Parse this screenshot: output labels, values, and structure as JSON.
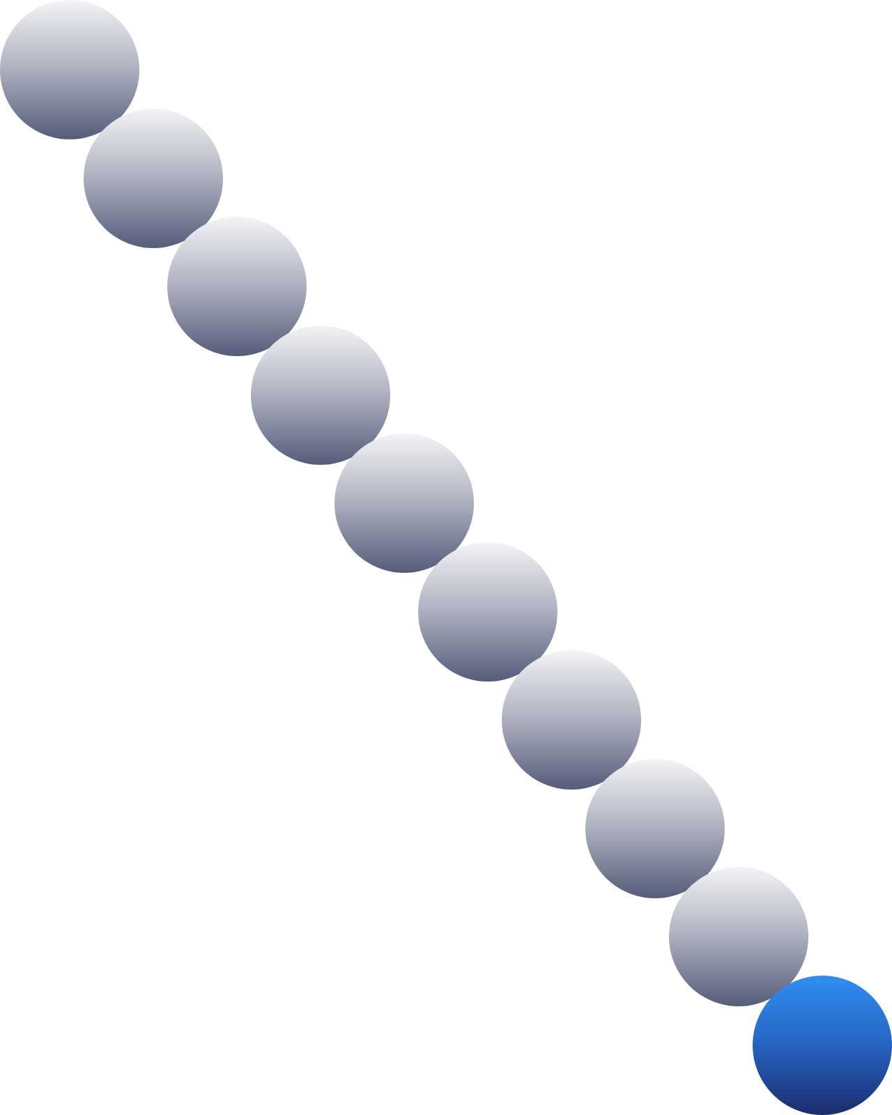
{
  "circles": [
    {
      "color": "gray"
    },
    {
      "color": "gray"
    },
    {
      "color": "gray"
    },
    {
      "color": "gray"
    },
    {
      "color": "gray"
    },
    {
      "color": "gray"
    },
    {
      "color": "gray"
    },
    {
      "color": "gray"
    },
    {
      "color": "gray"
    },
    {
      "color": "blue"
    }
  ],
  "colors": {
    "gray_top": "#f4f4f6",
    "gray_bottom": "#555c7a",
    "blue_top": "#2f8ff2",
    "blue_bottom": "#1b2d6b"
  }
}
